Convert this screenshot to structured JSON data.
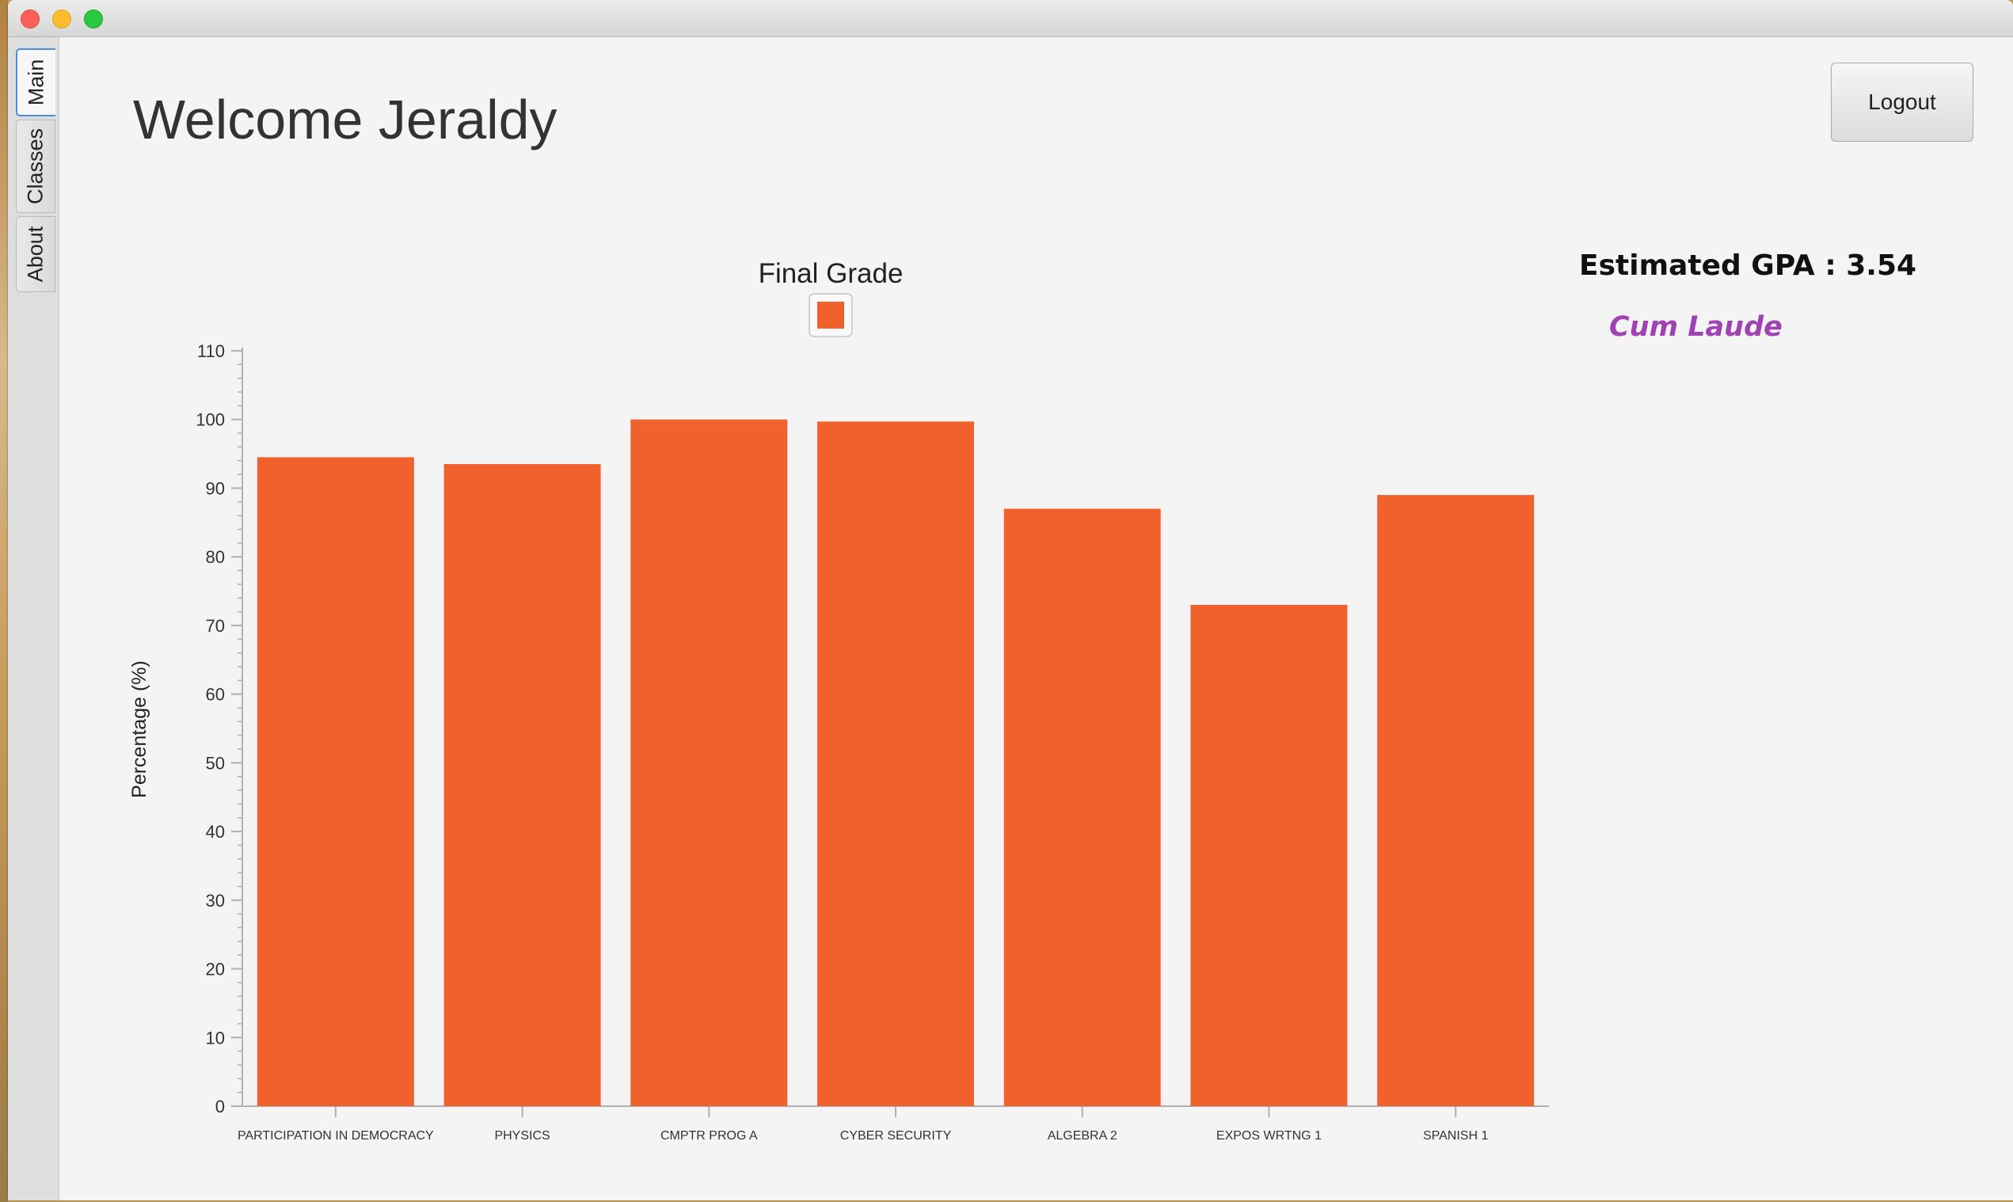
{
  "tabs": [
    {
      "label": "Main",
      "selected": true
    },
    {
      "label": "Classes",
      "selected": false
    },
    {
      "label": "About",
      "selected": false
    }
  ],
  "header": {
    "welcome": "Welcome Jeraldy",
    "logout_label": "Logout"
  },
  "gpa": {
    "label": "Estimated GPA : 3.54",
    "honor": "Cum Laude",
    "honor_color": "#a042b4"
  },
  "chart_data": {
    "type": "bar",
    "title": "Final Grade",
    "xlabel": "",
    "ylabel": "Percentage (%)",
    "ylim": [
      0,
      110
    ],
    "yticks": [
      0,
      10,
      20,
      30,
      40,
      50,
      60,
      70,
      80,
      90,
      100,
      110
    ],
    "categories": [
      "PARTICIPATION IN DEMOCRACY",
      "PHYSICS",
      "CMPTR PROG A",
      "CYBER SECURITY",
      "ALGEBRA 2",
      "EXPOS WRTNG 1",
      "SPANISH 1"
    ],
    "series": [
      {
        "values": [
          94.5,
          93.5,
          100,
          99.7,
          87,
          73,
          89
        ],
        "color": "#f0612e"
      }
    ],
    "grid": false,
    "legend": "top-center"
  }
}
